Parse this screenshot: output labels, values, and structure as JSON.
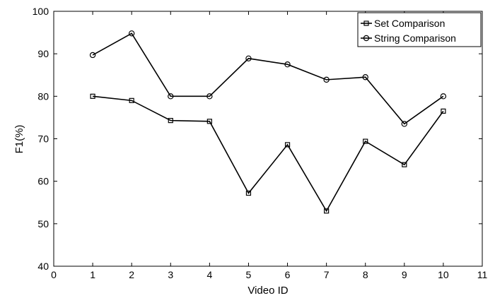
{
  "chart_data": {
    "type": "line",
    "title": "",
    "xlabel": "Video ID",
    "ylabel": "F1(%)",
    "xlim": [
      0,
      11
    ],
    "ylim": [
      40,
      100
    ],
    "xticks": [
      0,
      1,
      2,
      3,
      4,
      5,
      6,
      7,
      8,
      9,
      10,
      11
    ],
    "yticks": [
      40,
      50,
      60,
      70,
      80,
      90,
      100
    ],
    "grid": false,
    "legend_position": "top-right",
    "x": [
      1,
      2,
      3,
      4,
      5,
      6,
      7,
      8,
      9,
      10
    ],
    "series": [
      {
        "name": "Set Comparison",
        "marker": "square",
        "color": "#000000",
        "values": [
          80.0,
          79.0,
          74.3,
          74.1,
          57.2,
          68.6,
          53.0,
          69.4,
          63.9,
          76.5
        ]
      },
      {
        "name": "String Comparison",
        "marker": "circle",
        "color": "#000000",
        "values": [
          89.7,
          94.8,
          80.0,
          80.0,
          88.9,
          87.5,
          83.9,
          84.5,
          73.5,
          80.0
        ]
      }
    ]
  }
}
